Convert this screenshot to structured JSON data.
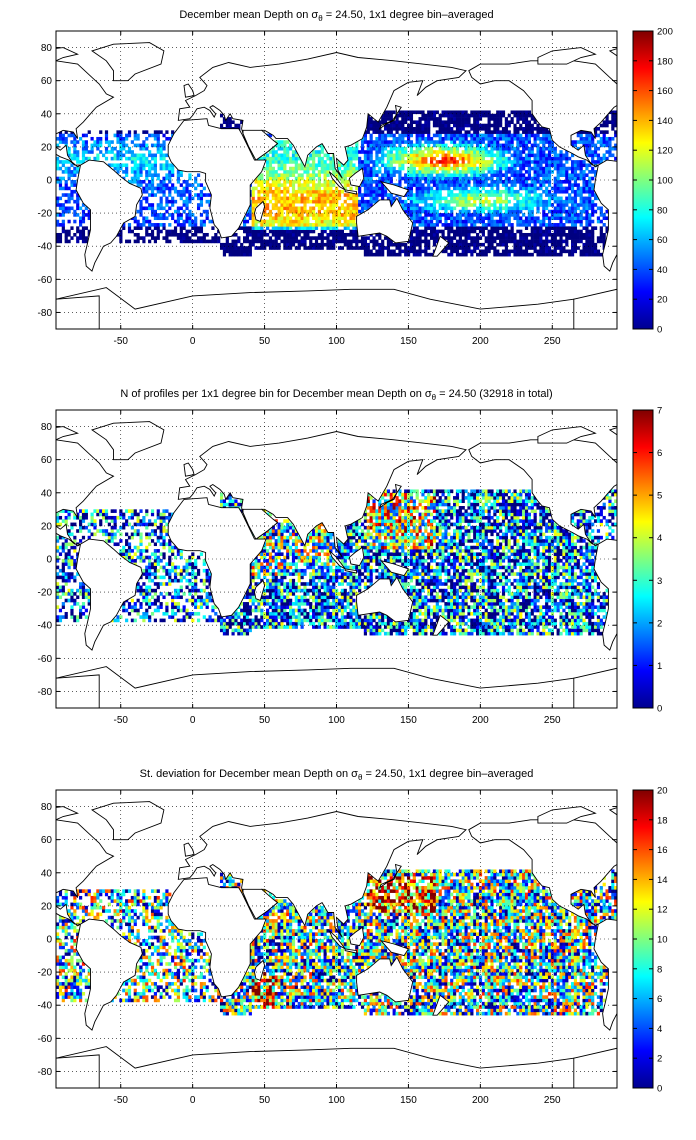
{
  "panels": [
    {
      "title_main": "December mean Depth on σ",
      "title_sub": "θ",
      "title_rest": " = 24.50, 1x1 degree bin–averaged",
      "colorbar": {
        "min": 0,
        "max": 200,
        "ticks": [
          0,
          20,
          40,
          60,
          80,
          100,
          120,
          140,
          160,
          180,
          200
        ]
      },
      "field": "mean_depth"
    },
    {
      "title_main": "N of profiles per 1x1 degree bin for December mean Depth on σ",
      "title_sub": "θ",
      "title_rest": " = 24.50 (32918 in total)",
      "colorbar": {
        "min": 0,
        "max": 7,
        "ticks": [
          0,
          1,
          2,
          3,
          4,
          5,
          6,
          7
        ]
      },
      "field": "profile_count"
    },
    {
      "title_main": "St. deviation for December mean Depth on σ",
      "title_sub": "θ",
      "title_rest": " = 24.50, 1x1 degree bin–averaged",
      "colorbar": {
        "min": 0,
        "max": 20,
        "ticks": [
          0,
          2,
          4,
          6,
          8,
          10,
          12,
          14,
          16,
          18,
          20
        ]
      },
      "field": "std_deviation"
    }
  ],
  "map": {
    "lon_range": [
      -95,
      295
    ],
    "lat_range": [
      -90,
      90
    ],
    "x_ticks": [
      -50,
      0,
      50,
      100,
      150,
      200,
      250
    ],
    "y_ticks": [
      -80,
      -60,
      -40,
      -20,
      0,
      20,
      40,
      60,
      80
    ],
    "grid": "dotted",
    "colormap": "jet",
    "total_profiles": 32918
  }
}
